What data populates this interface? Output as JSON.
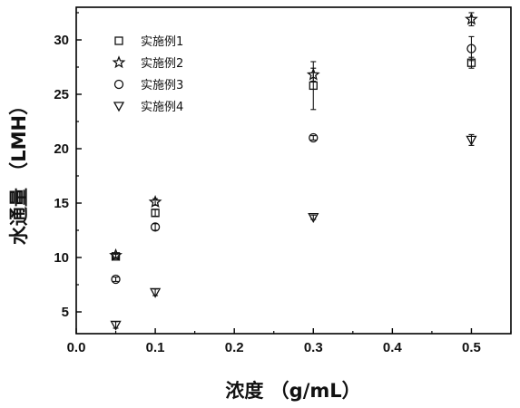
{
  "chart_data": {
    "type": "scatter",
    "xlabel": "浓度 （g/mL）",
    "ylabel": "水通量 （LMH）",
    "xlim": [
      0.0,
      0.55
    ],
    "ylim": [
      3,
      33
    ],
    "xticks": [
      "0.0",
      "0.1",
      "0.2",
      "0.3",
      "0.4",
      "0.5"
    ],
    "yticks": [
      "5",
      "10",
      "15",
      "20",
      "25",
      "30"
    ],
    "grid": false,
    "legend_position": "top-left",
    "series": [
      {
        "name": "实施例1",
        "marker": "square",
        "x": [
          0.05,
          0.1,
          0.3,
          0.5
        ],
        "y": [
          10.1,
          14.1,
          25.8,
          27.9
        ],
        "err": [
          0.2,
          0.3,
          2.2,
          0.5
        ]
      },
      {
        "name": "实施例2",
        "marker": "star",
        "x": [
          0.05,
          0.1,
          0.3,
          0.5
        ],
        "y": [
          10.2,
          15.1,
          26.8,
          31.9
        ],
        "err": [
          0.2,
          0.3,
          0.6,
          0.6
        ]
      },
      {
        "name": "实施例3",
        "marker": "circle",
        "x": [
          0.05,
          0.1,
          0.3,
          0.5
        ],
        "y": [
          8.0,
          12.8,
          21.0,
          29.2
        ],
        "err": [
          0.2,
          0.3,
          0.2,
          1.1
        ]
      },
      {
        "name": "实施例4",
        "marker": "triangle-down",
        "x": [
          0.05,
          0.1,
          0.3,
          0.5
        ],
        "y": [
          3.8,
          6.8,
          13.7,
          20.8
        ],
        "err": [
          0.3,
          0.3,
          0.2,
          0.5
        ]
      }
    ]
  }
}
